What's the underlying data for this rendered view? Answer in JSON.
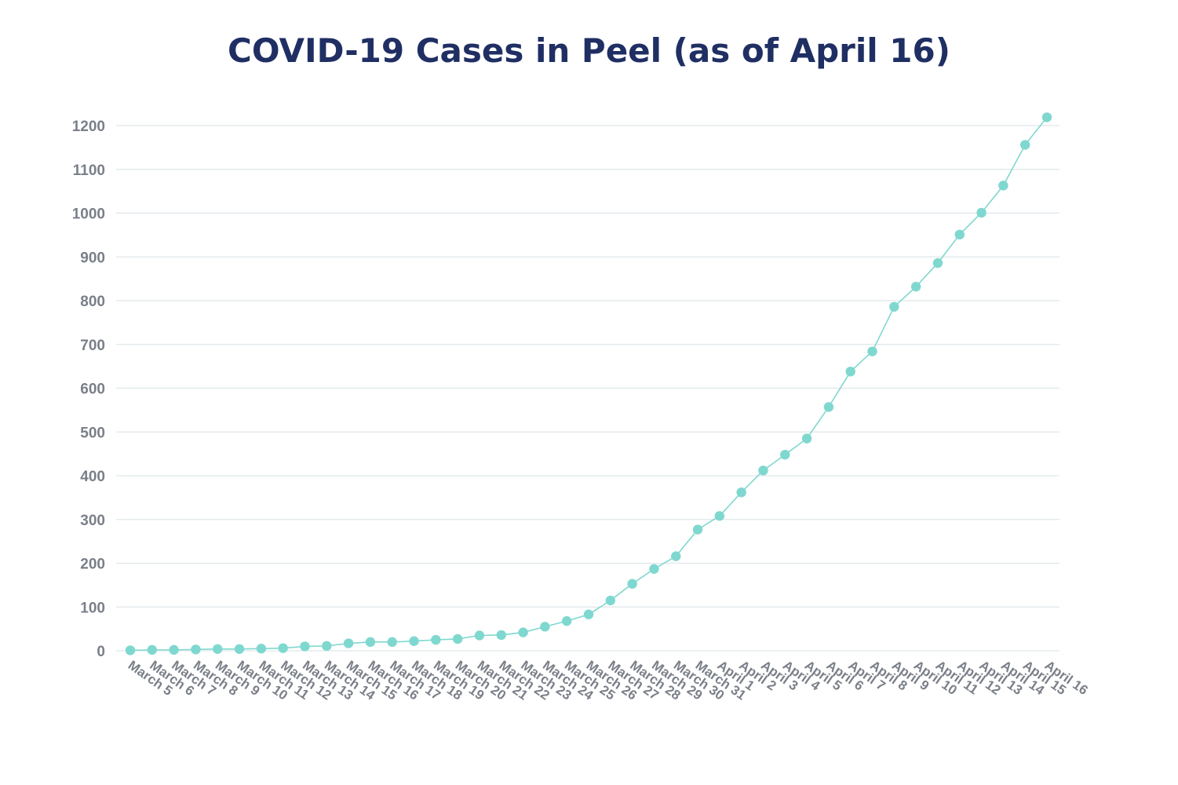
{
  "chart_data": {
    "type": "line",
    "title": "COVID-19 Cases in Peel (as of April 16)",
    "xlabel": "",
    "ylabel": "",
    "ylim": [
      0,
      1200
    ],
    "yticks": [
      0,
      100,
      200,
      300,
      400,
      500,
      600,
      700,
      800,
      900,
      1000,
      1100,
      1200
    ],
    "grid": true,
    "legend": "none",
    "colors": {
      "line": "#7fd8cf",
      "marker": "#7fd8cf",
      "grid": "#dfe6ea",
      "tick": "#7a7f88",
      "title": "#1f2f63"
    },
    "categories": [
      "March 5",
      "March 6",
      "March 7",
      "March 8",
      "March 9",
      "March 10",
      "March 11",
      "March 12",
      "March 13",
      "March 14",
      "March 15",
      "March 16",
      "March 17",
      "March 18",
      "March 19",
      "March 20",
      "March 21",
      "March 22",
      "March 23",
      "March 24",
      "March 25",
      "March 26",
      "March 27",
      "March 28",
      "March 29",
      "March 30",
      "March 31",
      "April 1",
      "April 2",
      "April 3",
      "April 4",
      "April 5",
      "April 6",
      "April 7",
      "April 8",
      "April 9",
      "April 10",
      "April 11",
      "April 12",
      "April 13",
      "April 14",
      "April 15",
      "April 16"
    ],
    "series": [
      {
        "values": [
          1,
          2,
          2,
          3,
          4,
          4,
          5,
          6,
          10,
          11,
          17,
          20,
          20,
          22,
          25,
          27,
          35,
          36,
          42,
          55,
          68,
          83,
          115,
          153,
          187,
          216,
          277,
          308,
          362,
          412,
          448,
          485,
          557,
          638,
          684,
          786,
          832,
          886,
          951,
          1001,
          1063,
          1156,
          1219
        ]
      }
    ]
  }
}
